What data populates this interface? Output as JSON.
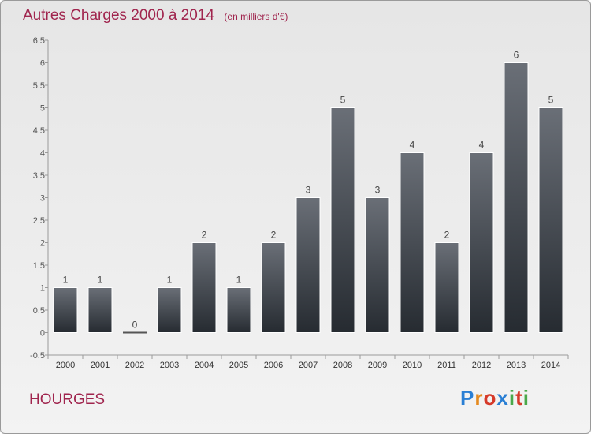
{
  "header": {
    "title": "Autres Charges 2000 à 2014",
    "subtitle": "(en milliers d'€)"
  },
  "footer": {
    "commune": "HOURGES",
    "brand": "Proxiti",
    "brand_colors": [
      "#2a7fd4",
      "#e58a1f",
      "#d63a2a",
      "#2a7fd4",
      "#4aa84a",
      "#d63a2a",
      "#4aa84a"
    ]
  },
  "colors": {
    "accent": "#a0254e",
    "bar_top": "#6a6f77",
    "bar_bottom": "#262b31"
  },
  "chart_data": {
    "type": "bar",
    "title": "Autres Charges 2000 à 2014",
    "subtitle": "(en milliers d'€)",
    "categories": [
      "2000",
      "2001",
      "2002",
      "2003",
      "2004",
      "2005",
      "2006",
      "2007",
      "2008",
      "2009",
      "2010",
      "2011",
      "2012",
      "2013",
      "2014"
    ],
    "values": [
      1,
      1,
      0,
      1,
      2,
      1,
      2,
      3,
      5,
      3,
      4,
      2,
      4,
      6,
      5
    ],
    "data_labels": [
      "1",
      "1",
      "0",
      "1",
      "2",
      "1",
      "2",
      "3",
      "5",
      "3",
      "4",
      "2",
      "4",
      "6",
      "5"
    ],
    "yticks": [
      "-0.5",
      "0",
      "0.5",
      "1",
      "1.5",
      "2",
      "2.5",
      "3",
      "3.5",
      "4",
      "4.5",
      "5",
      "5.5",
      "6",
      "6.5"
    ],
    "ylim": [
      -0.5,
      6.5
    ],
    "grid": false
  }
}
